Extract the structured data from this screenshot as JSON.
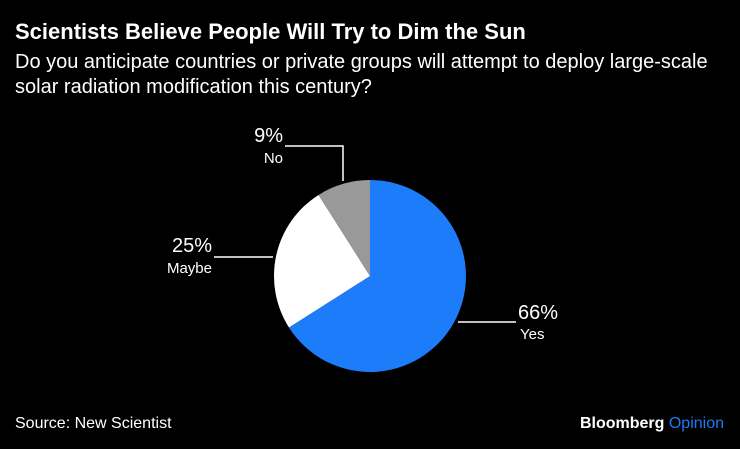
{
  "title": "Scientists Believe People Will Try to Dim the Sun",
  "subtitle": "Do you anticipate countries or private groups will attempt to deploy large-scale solar radiation modification this century?",
  "source": "Source: New Scientist",
  "brand": {
    "name": "Bloomberg",
    "accent": "Opinion"
  },
  "colors": {
    "yes": "#1c7cf9",
    "maybe": "#ffffff",
    "no": "#999999",
    "background": "#000000",
    "leader": "#ffffff"
  },
  "chart_data": {
    "type": "pie",
    "slices": [
      {
        "label": "Yes",
        "value": 66,
        "value_label": "66%"
      },
      {
        "label": "Maybe",
        "value": 25,
        "value_label": "25%"
      },
      {
        "label": "No",
        "value": 9,
        "value_label": "9%"
      }
    ]
  }
}
